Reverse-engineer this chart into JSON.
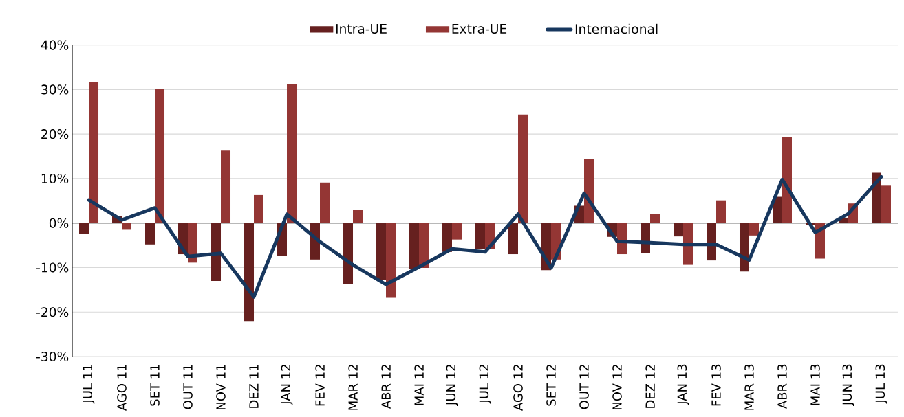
{
  "chart_data": {
    "type": "bar",
    "categories": [
      "JUL 11",
      "AGO 11",
      "SET 11",
      "OUT 11",
      "NOV 11",
      "DEZ 11",
      "JAN 12",
      "FEV 12",
      "MAR 12",
      "ABR 12",
      "MAI 12",
      "JUN 12",
      "JUL 12",
      "AGO 12",
      "SET 12",
      "OUT 12",
      "NOV 12",
      "DEZ 12",
      "JAN 13",
      "FEV 13",
      "MAR 13",
      "ABR 13",
      "MAI 13",
      "JUN 13",
      "JUL 13"
    ],
    "series": [
      {
        "name": "Intra-UE",
        "color": "#66201f",
        "values": [
          -2.5,
          1.5,
          -4.8,
          -7,
          -13,
          -22,
          -7.3,
          -8.2,
          -13.7,
          -12.7,
          -10.4,
          -6.5,
          -5.8,
          -7,
          -10.6,
          3.9,
          -3.1,
          -6.8,
          -3,
          -8.4,
          -10.9,
          5.9,
          -0.5,
          1.2,
          11.3
        ]
      },
      {
        "name": "Extra-UE",
        "color": "#943634",
        "values": [
          31.6,
          -1.5,
          30.1,
          -8.9,
          16.3,
          6.3,
          31.3,
          9.1,
          2.9,
          -16.8,
          -10.1,
          -3.7,
          -5.8,
          24.4,
          -8.2,
          14.4,
          -7,
          2,
          -9.4,
          5.1,
          -2.8,
          19.4,
          -8,
          4.4,
          8.4
        ]
      },
      {
        "name": "Internacional",
        "type": "line",
        "color": "#17375e",
        "values": [
          5.2,
          0.7,
          3.4,
          -7.5,
          -6.8,
          -16.6,
          2,
          -4.2,
          -9.4,
          -13.8,
          -9.9,
          -5.8,
          -6.5,
          2,
          -10.1,
          6.7,
          -4.1,
          -4.4,
          -4.8,
          -4.8,
          -8.3,
          9.8,
          -2.1,
          2.1,
          10.4
        ]
      }
    ],
    "ylim": [
      -30,
      40
    ],
    "yticks": [
      {
        "value": -30,
        "label": "-30%"
      },
      {
        "value": -20,
        "label": "-20%"
      },
      {
        "value": -10,
        "label": "-10%"
      },
      {
        "value": 0,
        "label": "0%"
      },
      {
        "value": 10,
        "label": "10%"
      },
      {
        "value": 20,
        "label": "20%"
      },
      {
        "value": 30,
        "label": "30%"
      },
      {
        "value": 40,
        "label": "40%"
      }
    ],
    "grid": "y",
    "legend": "top"
  }
}
